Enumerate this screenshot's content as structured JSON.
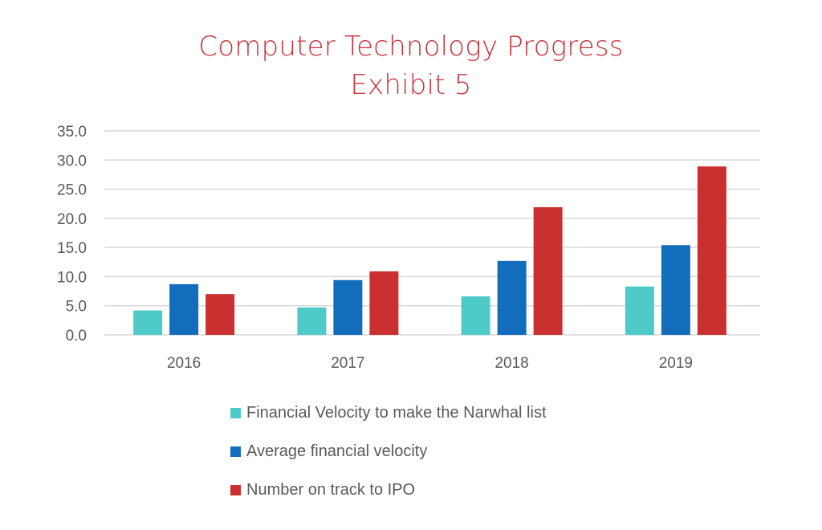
{
  "chart_data": {
    "type": "bar",
    "title": "Computer Technology Progress",
    "subtitle": "Exhibit 5",
    "xlabel": "",
    "ylabel": "",
    "categories": [
      "2016",
      "2017",
      "2018",
      "2019"
    ],
    "series": [
      {
        "name": "Financial Velocity to make the Narwhal list",
        "color": "#4ecac9",
        "values": [
          4.2,
          4.7,
          6.6,
          8.3
        ]
      },
      {
        "name": "Average financial velocity",
        "color": "#136dbd",
        "values": [
          8.7,
          9.4,
          12.7,
          15.4
        ]
      },
      {
        "name": "Number on track to IPO",
        "color": "#c9302f",
        "values": [
          7.0,
          10.9,
          21.9,
          28.9
        ]
      }
    ],
    "ylim": [
      0,
      35
    ],
    "yticks": [
      "0.0",
      "5.0",
      "10.0",
      "15.0",
      "20.0",
      "25.0",
      "30.0",
      "35.0"
    ],
    "ytick_values": [
      0,
      5,
      10,
      15,
      20,
      25,
      30,
      35
    ],
    "grid": true,
    "legend_position": "bottom",
    "title_color": "#c8323a",
    "grid_color": "#d9d9d9",
    "text_color": "#595959"
  }
}
